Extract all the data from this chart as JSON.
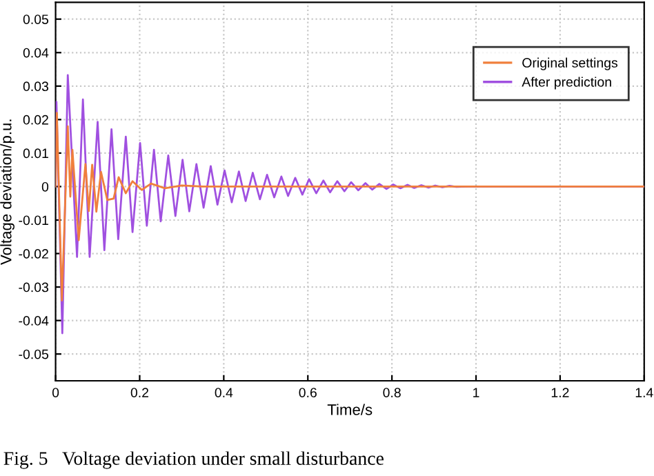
{
  "chart_data": {
    "type": "line",
    "xlabel": "Time/s",
    "ylabel": "Voltage deviation/p.u.",
    "annotations": [
      "Fig. 5   Voltage deviation under small disturbance"
    ],
    "xlim": [
      0,
      1.4
    ],
    "xticks": [
      0,
      0.2,
      0.4,
      0.6,
      0.8,
      1,
      1.2,
      1.4
    ],
    "ylim": [
      -0.058,
      0.055
    ],
    "yticks": [
      -0.05,
      -0.04,
      -0.03,
      -0.02,
      -0.01,
      0,
      0.01,
      0.02,
      0.03,
      0.04,
      0.05
    ],
    "grid": true,
    "legend": "top right",
    "line_style": "solid",
    "marker": "none",
    "series": [
      {
        "name": "Original settings",
        "color": "#f07f3c",
        "x": [
          0,
          0.003,
          0.015,
          0.029,
          0.035,
          0.04,
          0.055,
          0.071,
          0.079,
          0.087,
          0.097,
          0.108,
          0.123,
          0.138,
          0.15,
          0.167,
          0.183,
          0.205,
          0.227,
          0.26,
          0.3,
          0.35,
          1.4
        ],
        "values": [
          0,
          0.022,
          -0.034,
          0.018,
          -0.003,
          0.011,
          -0.016,
          0.0067,
          -0.0073,
          0.0065,
          -0.0075,
          0.0044,
          -0.004,
          -0.0036,
          0.0028,
          -0.002,
          0.0016,
          -0.001,
          0.0009,
          -0.0005,
          0.0003,
          0,
          0
        ]
      },
      {
        "name": "After prediction",
        "color": "#a050e0",
        "x": [
          0,
          0.002,
          0.016,
          0.029,
          0.051,
          0.065,
          0.081,
          0.1,
          0.116,
          0.133,
          0.149,
          0.167,
          0.183,
          0.201,
          0.217,
          0.234,
          0.25,
          0.268,
          0.285,
          0.302,
          0.318,
          0.335,
          0.352,
          0.369,
          0.385,
          0.402,
          0.419,
          0.436,
          0.452,
          0.469,
          0.486,
          0.503,
          0.52,
          0.537,
          0.553,
          0.57,
          0.587,
          0.603,
          0.62,
          0.637,
          0.653,
          0.67,
          0.687,
          0.703,
          0.72,
          0.737,
          0.753,
          0.77,
          0.787,
          0.803,
          0.82,
          0.837,
          0.853,
          0.87,
          0.887,
          0.903,
          0.92,
          0.937,
          0.953,
          0.98,
          1.4
        ],
        "values": [
          0,
          0.0253,
          -0.0438,
          0.0333,
          -0.021,
          0.026,
          -0.021,
          0.0193,
          -0.019,
          0.0171,
          -0.0157,
          0.0149,
          -0.0136,
          0.013,
          -0.0117,
          0.011,
          -0.0104,
          0.0093,
          -0.0088,
          0.008,
          -0.0074,
          0.0067,
          -0.0063,
          0.0061,
          -0.0054,
          0.0048,
          -0.0047,
          0.0045,
          -0.0043,
          0.0041,
          -0.0038,
          0.0035,
          -0.0032,
          0.003,
          -0.0028,
          0.0026,
          -0.0024,
          0.0022,
          -0.002,
          0.0018,
          -0.0017,
          0.0016,
          -0.0014,
          0.0013,
          -0.0011,
          0.001,
          -0.0009,
          0.0008,
          -0.0007,
          0.0006,
          -0.0005,
          0.0005,
          -0.0004,
          0.0004,
          -0.0003,
          0.0003,
          -0.0002,
          0.0002,
          -0.0001,
          0,
          0
        ]
      }
    ]
  }
}
